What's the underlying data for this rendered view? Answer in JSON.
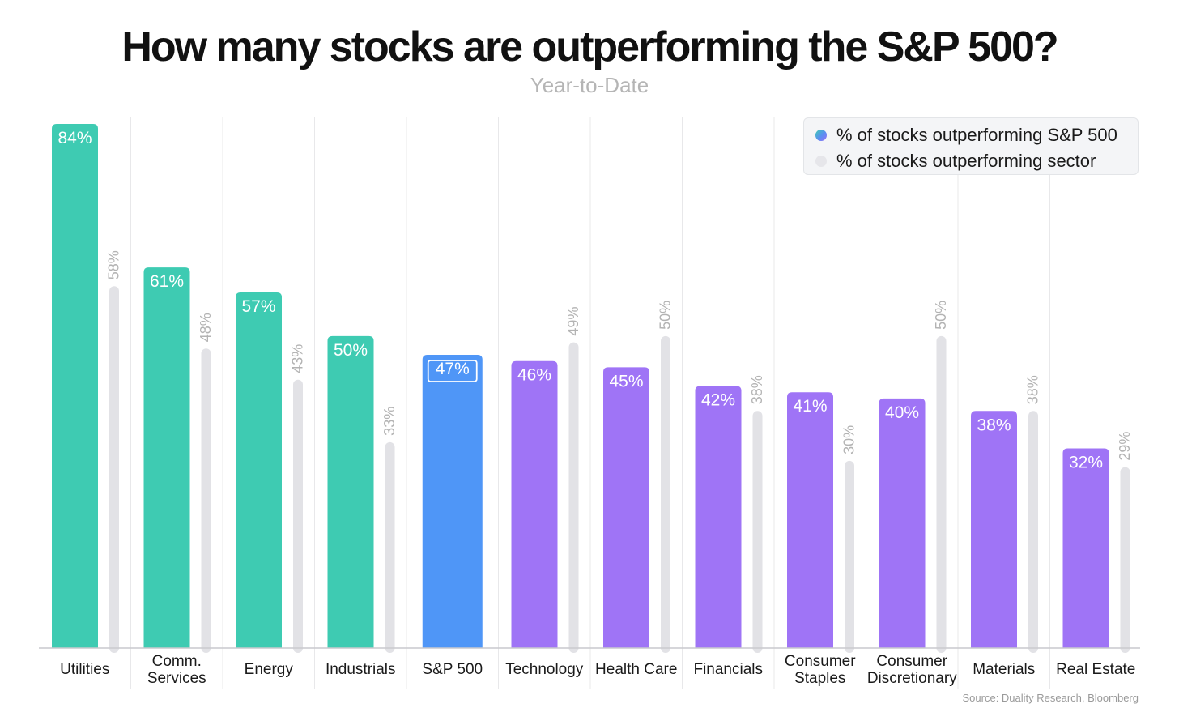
{
  "title": "How many stocks are outperforming the S&P 500?",
  "subtitle": "Year-to-Date",
  "legend": {
    "primary": "% of stocks outperforming S&P 500",
    "secondary": "% of stocks outperforming sector"
  },
  "source": "Source: Duality Research, Bloomberg",
  "colors": {
    "green": "#3ecbb2",
    "blue": "#4f96f7",
    "purple": "#9f74f6",
    "gray": "#e2e2e6",
    "primary_label": "#ffffff",
    "secondary_label": "#b3b3b3"
  },
  "chart_data": {
    "type": "bar",
    "categories": [
      [
        "Utilities"
      ],
      [
        "Comm.",
        "Services"
      ],
      [
        "Energy"
      ],
      [
        "Industrials"
      ],
      [
        "S&P 500"
      ],
      [
        "Technology"
      ],
      [
        "Health Care"
      ],
      [
        "Financials"
      ],
      [
        "Consumer",
        "Staples"
      ],
      [
        "Consumer",
        "Discretionary"
      ],
      [
        "Materials"
      ],
      [
        "Real Estate"
      ]
    ],
    "series": [
      {
        "name": "% of stocks outperforming S&P 500",
        "values": [
          84,
          61,
          57,
          50,
          47,
          46,
          45,
          42,
          41,
          40,
          38,
          32
        ],
        "labels": [
          "84%",
          "61%",
          "57%",
          "50%",
          "47%",
          "46%",
          "45%",
          "42%",
          "41%",
          "40%",
          "38%",
          "32%"
        ],
        "colors": [
          "green",
          "green",
          "green",
          "green",
          "blue",
          "purple",
          "purple",
          "purple",
          "purple",
          "purple",
          "purple",
          "purple"
        ]
      },
      {
        "name": "% of stocks outperforming sector",
        "values": [
          58,
          48,
          43,
          33,
          null,
          49,
          50,
          38,
          30,
          50,
          38,
          29
        ],
        "labels": [
          "58%",
          "48%",
          "43%",
          "33%",
          "",
          "49%",
          "50%",
          "38%",
          "30%",
          "50%",
          "38%",
          "29%"
        ]
      }
    ],
    "ylim": [
      0,
      84
    ],
    "grid": true,
    "legend_position": "top-right"
  }
}
